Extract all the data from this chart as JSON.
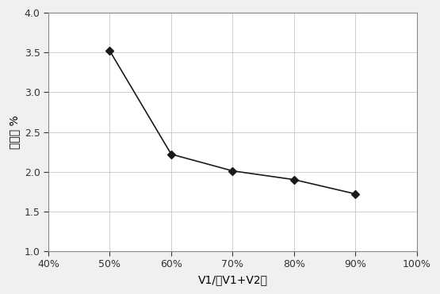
{
  "x": [
    0.5,
    0.6,
    0.7,
    0.8,
    0.9
  ],
  "y": [
    3.52,
    2.22,
    2.01,
    1.9,
    1.72
  ],
  "xlim": [
    0.4,
    1.0
  ],
  "ylim": [
    1.0,
    4.0
  ],
  "xticks": [
    0.4,
    0.5,
    0.6,
    0.7,
    0.8,
    0.9,
    1.0
  ],
  "yticks": [
    1.0,
    1.5,
    2.0,
    2.5,
    3.0,
    3.5,
    4.0
  ],
  "xlabel": "V1/（V1+V2）",
  "ylabel": "含油率 %",
  "line_color": "#1a1a1a",
  "marker": "D",
  "marker_size": 5,
  "marker_color": "#1a1a1a",
  "background_color": "#f0f0f0",
  "plot_background": "#ffffff",
  "grid_color": "#bbbbbb",
  "border_color": "#888888"
}
